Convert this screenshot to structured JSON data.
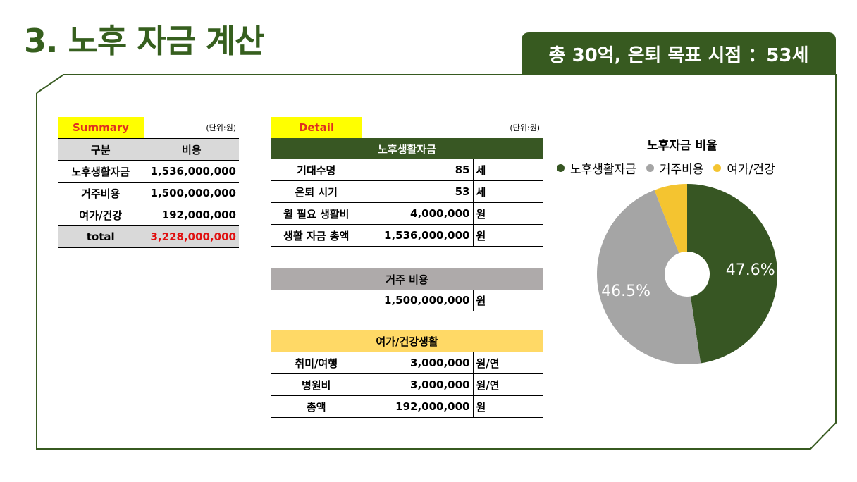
{
  "title": "3. 노후 자금 계산",
  "badge": "총 30억, 은퇴 목표 시점 ：53세",
  "summary": {
    "header": "Summary",
    "unit": "(단위:원)",
    "col1": "구분",
    "col2": "비용",
    "rows": [
      {
        "label": "노후생활자금",
        "value": "1,536,000,000"
      },
      {
        "label": "거주비용",
        "value": "1,500,000,000"
      },
      {
        "label": "여가/건강",
        "value": "192,000,000"
      }
    ],
    "total_label": "total",
    "total_value": "3,228,000,000"
  },
  "detail": {
    "header": "Detail",
    "unit": "(단위:원)",
    "living": {
      "title": "노후생활자금",
      "rows": [
        {
          "label": "기대수명",
          "value": "85",
          "unit": "세"
        },
        {
          "label": "은퇴 시기",
          "value": "53",
          "unit": "세"
        },
        {
          "label": "월 필요 생활비",
          "value": "4,000,000",
          "unit": "원"
        },
        {
          "label": "생활 자금 총액",
          "value": "1,536,000,000",
          "unit": "원"
        }
      ]
    },
    "housing": {
      "title": "거주 비용",
      "value": "1,500,000,000",
      "unit": "원"
    },
    "leisure": {
      "title": "여가/건강생활",
      "rows": [
        {
          "label": "취미/여행",
          "value": "3,000,000",
          "unit": "원/연"
        },
        {
          "label": "병원비",
          "value": "3,000,000",
          "unit": "원/연"
        },
        {
          "label": "총액",
          "value": "192,000,000",
          "unit": "원"
        }
      ]
    }
  },
  "colors": {
    "green": "#375623",
    "gray": "#a5a5a5",
    "yellow": "#f4c430",
    "title_green": "#365f1e"
  },
  "chart_data": {
    "type": "pie",
    "title": "노후자금 비율",
    "legend_position": "top",
    "categories": [
      "노후생활자금",
      "거주비용",
      "여가/건강"
    ],
    "values": [
      47.6,
      46.5,
      5.9
    ],
    "labels": [
      "47.6%",
      "46.5%",
      ""
    ],
    "colors": [
      "#375623",
      "#a5a5a5",
      "#f4c430"
    ]
  }
}
